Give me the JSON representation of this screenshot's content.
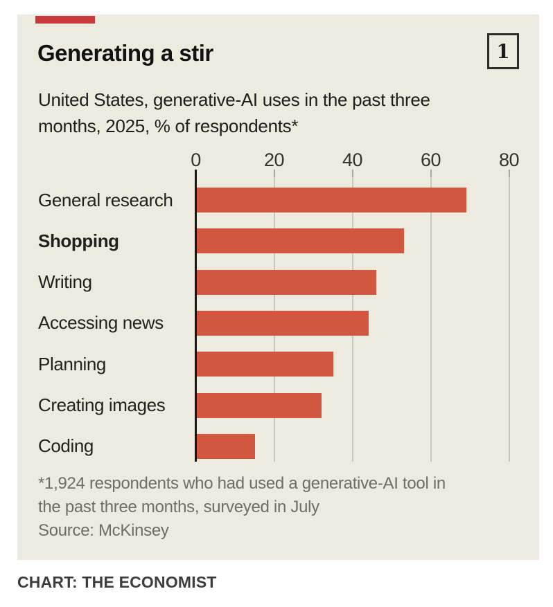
{
  "page": {
    "footer": "CHART: THE ECONOMIST"
  },
  "card": {
    "title": "Generating a stir",
    "chart_number": "1",
    "subtitle": "United States, generative-AI uses in the past three months, 2025, % of respondents*",
    "footnote": "*1,924 respondents who had used a generative-AI tool in the past three months, surveyed in July",
    "source": "Source: McKinsey"
  },
  "chart_data": {
    "type": "bar",
    "orientation": "horizontal",
    "title": "Generating a stir",
    "subtitle": "United States, generative-AI uses in the past three months, 2025, % of respondents*",
    "categories": [
      "General research",
      "Shopping",
      "Writing",
      "Accessing news",
      "Planning",
      "Creating images",
      "Coding"
    ],
    "values": [
      69,
      53,
      46,
      44,
      35,
      32,
      15
    ],
    "emphasized_category": "Shopping",
    "xlabel": "% of respondents",
    "xlim": [
      0,
      80
    ],
    "xticks": [
      0,
      20,
      40,
      60,
      80
    ],
    "grid": "vertical",
    "legend": "none",
    "source": "McKinsey"
  },
  "colors": {
    "card_background": "#edeae0",
    "bar": "#d2573e",
    "tab_red": "#c93a3a",
    "gridline": "#c9c7bd",
    "axis": "#161614",
    "footnote_gray": "#6f6d66"
  }
}
